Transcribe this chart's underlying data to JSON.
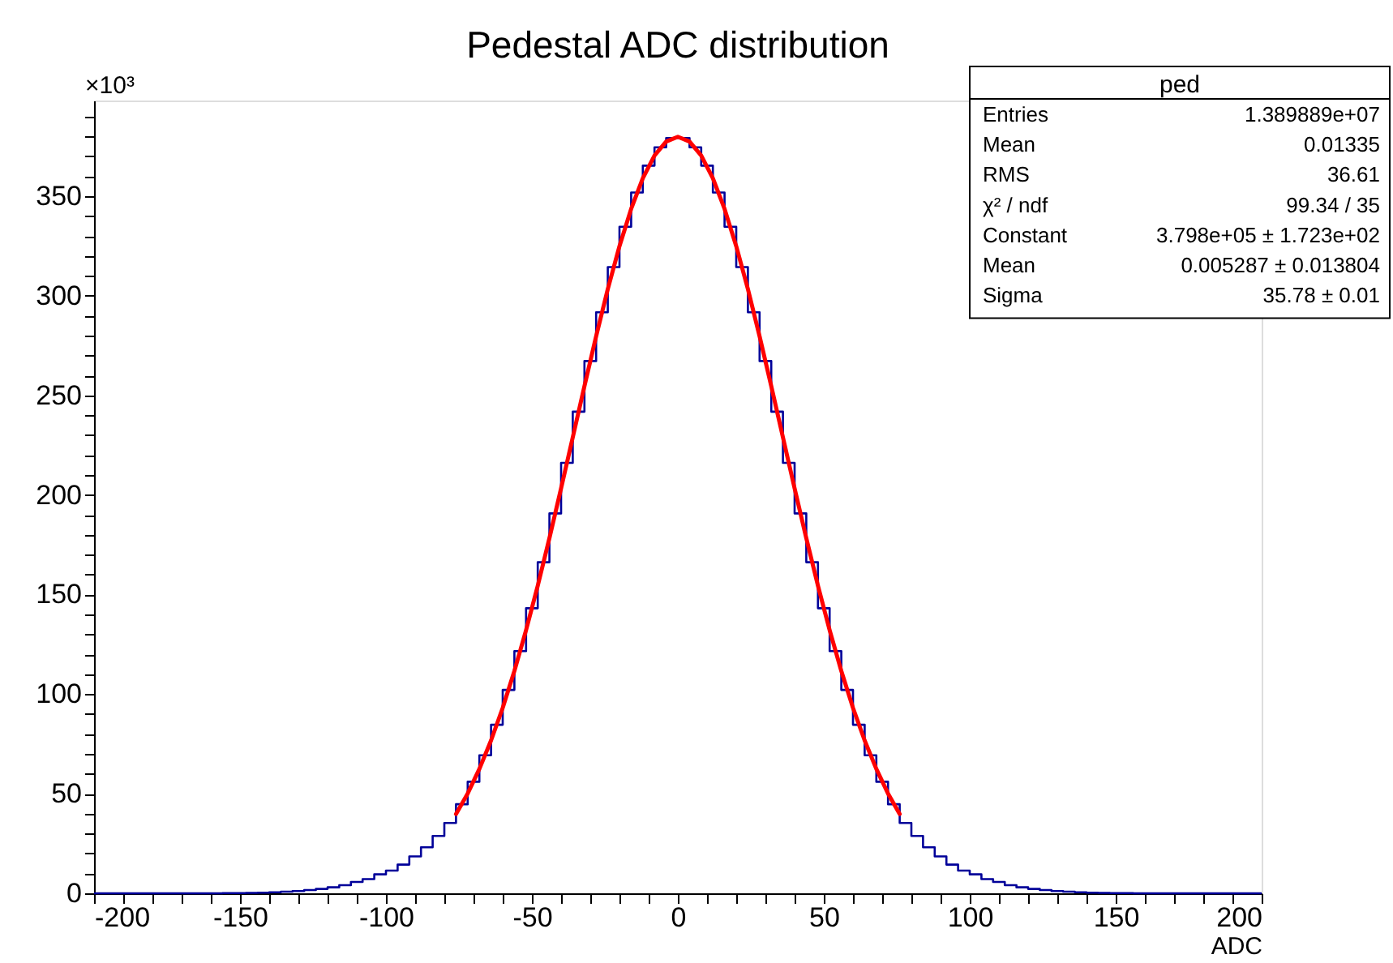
{
  "chart_data": {
    "type": "histogram",
    "title": "Pedestal ADC distribution",
    "xlabel": "ADC",
    "ylabel": "×10³",
    "xlim": [
      -200,
      200
    ],
    "ylim": [
      0,
      398
    ],
    "xticks": [
      -200,
      {
        "value": -190,
        "label": null
      },
      {
        "value": -180,
        "label": null
      },
      {
        "value": -170,
        "label": null
      },
      {
        "value": -160,
        "label": null
      },
      -150,
      {
        "value": -140,
        "label": null
      },
      {
        "value": -130,
        "label": null
      },
      {
        "value": -120,
        "label": null
      },
      {
        "value": -110,
        "label": null
      },
      -100,
      {
        "value": -90,
        "label": null
      },
      {
        "value": -80,
        "label": null
      },
      {
        "value": -70,
        "label": null
      },
      {
        "value": -60,
        "label": null
      },
      -50,
      {
        "value": -40,
        "label": null
      },
      {
        "value": -30,
        "label": null
      },
      {
        "value": -20,
        "label": null
      },
      {
        "value": -10,
        "label": null
      },
      0,
      {
        "value": 10,
        "label": null
      },
      {
        "value": 20,
        "label": null
      },
      {
        "value": 30,
        "label": null
      },
      {
        "value": 40,
        "label": null
      },
      50,
      {
        "value": 60,
        "label": null
      },
      {
        "value": 70,
        "label": null
      },
      {
        "value": 80,
        "label": null
      },
      {
        "value": 90,
        "label": null
      },
      100,
      {
        "value": 110,
        "label": null
      },
      {
        "value": 120,
        "label": null
      },
      {
        "value": 130,
        "label": null
      },
      {
        "value": 140,
        "label": null
      },
      150,
      {
        "value": 160,
        "label": null
      },
      {
        "value": 170,
        "label": null
      },
      {
        "value": 180,
        "label": null
      },
      {
        "value": 190,
        "label": null
      },
      200
    ],
    "yticks": [
      0,
      {
        "value": 10,
        "label": null
      },
      {
        "value": 20,
        "label": null
      },
      {
        "value": 30,
        "label": null
      },
      {
        "value": 40,
        "label": null
      },
      50,
      {
        "value": 60,
        "label": null
      },
      {
        "value": 70,
        "label": null
      },
      {
        "value": 80,
        "label": null
      },
      {
        "value": 90,
        "label": null
      },
      100,
      {
        "value": 110,
        "label": null
      },
      {
        "value": 120,
        "label": null
      },
      {
        "value": 130,
        "label": null
      },
      {
        "value": 140,
        "label": null
      },
      150,
      {
        "value": 160,
        "label": null
      },
      {
        "value": 170,
        "label": null
      },
      {
        "value": 180,
        "label": null
      },
      {
        "value": 190,
        "label": null
      },
      200,
      {
        "value": 210,
        "label": null
      },
      {
        "value": 220,
        "label": null
      },
      {
        "value": 230,
        "label": null
      },
      {
        "value": 240,
        "label": null
      },
      250,
      {
        "value": 260,
        "label": null
      },
      {
        "value": 270,
        "label": null
      },
      {
        "value": 280,
        "label": null
      },
      {
        "value": 290,
        "label": null
      },
      300,
      {
        "value": 310,
        "label": null
      },
      {
        "value": 320,
        "label": null
      },
      {
        "value": 330,
        "label": null
      },
      {
        "value": 340,
        "label": null
      },
      350,
      {
        "value": 360,
        "label": null
      },
      {
        "value": 370,
        "label": null
      },
      {
        "value": 380,
        "label": null
      },
      {
        "value": 390,
        "label": null
      }
    ],
    "series": [
      {
        "color": "#000099",
        "bins": [
          -200,
          -196,
          -192,
          -188,
          -184,
          -180,
          -176,
          -172,
          -168,
          -164,
          -160,
          -156,
          -152,
          -148,
          -144,
          -140,
          -136,
          -132,
          -128,
          -124,
          -120,
          -116,
          -112,
          -108,
          -104,
          -100,
          -96,
          -92,
          -88,
          -84,
          -80,
          -76,
          -72,
          -68,
          -64,
          -60,
          -56,
          -52,
          -48,
          -44,
          -40,
          -36,
          -32,
          -28,
          -24,
          -20,
          -16,
          -12,
          -8,
          -4,
          0,
          4,
          8,
          12,
          16,
          20,
          24,
          28,
          32,
          36,
          40,
          44,
          48,
          52,
          56,
          60,
          64,
          68,
          72,
          76,
          80,
          84,
          88,
          92,
          96,
          100,
          104,
          108,
          112,
          116,
          120,
          124,
          128,
          132,
          136,
          140,
          144,
          148,
          152,
          156,
          160,
          164,
          168,
          172,
          176,
          180,
          184,
          188,
          192,
          196,
          200
        ],
        "values": [
          0,
          0,
          0,
          0,
          0,
          0,
          0,
          0,
          0,
          0,
          0,
          0.1,
          0.1,
          0.2,
          0.3,
          0.5,
          0.8,
          1.1,
          1.6,
          2.2,
          3.0,
          4.1,
          5.7,
          7.1,
          9.5,
          11.4,
          14.4,
          18.5,
          23.1,
          28.8,
          35.3,
          44.7,
          56.0,
          69.3,
          84.6,
          102.1,
          121.6,
          143.1,
          166.2,
          190.7,
          216.1,
          241.8,
          267.2,
          291.7,
          314.4,
          334.6,
          351.8,
          365.3,
          374.5,
          379.2,
          379.2,
          374.5,
          365.3,
          351.8,
          334.6,
          314.4,
          291.7,
          267.2,
          241.8,
          216.1,
          190.7,
          166.2,
          143.1,
          121.6,
          102.1,
          84.6,
          69.3,
          56.0,
          44.7,
          35.3,
          28.8,
          23.1,
          18.5,
          14.4,
          11.4,
          9.5,
          7.1,
          5.7,
          4.1,
          3.0,
          2.2,
          1.6,
          1.1,
          0.8,
          0.5,
          0.3,
          0.2,
          0.1,
          0.1,
          0,
          0,
          0,
          0,
          0,
          0,
          0,
          0,
          0,
          0,
          0
        ]
      },
      {
        "type": "line",
        "color": "#ff0000",
        "x": [
          -76,
          -72,
          -68,
          -64,
          -60,
          -56,
          -52,
          -48,
          -44,
          -40,
          -36,
          -32,
          -28,
          -24,
          -20,
          -16,
          -12,
          -8,
          -4,
          0,
          4,
          8,
          12,
          16,
          20,
          24,
          28,
          32,
          36,
          40,
          44,
          48,
          52,
          56,
          60,
          64,
          68,
          72,
          76
        ],
        "values": [
          39.8,
          50.1,
          62.4,
          76.7,
          93.1,
          111.6,
          132.1,
          154.4,
          178.3,
          203.3,
          228.9,
          254.6,
          279.6,
          303.3,
          324.9,
          343.6,
          359.0,
          370.4,
          377.4,
          379.8,
          377.4,
          370.4,
          359.0,
          343.6,
          324.9,
          303.3,
          279.6,
          254.6,
          228.9,
          203.3,
          178.3,
          154.4,
          132.1,
          111.6,
          93.1,
          76.7,
          62.4,
          50.1,
          39.8
        ]
      }
    ],
    "annotations": [
      "ped",
      "Entries",
      "1.389889e+07",
      "Mean",
      "0.01335",
      "RMS",
      "36.61",
      "χ² / ndf",
      "99.34 / 35",
      "Constant",
      "3.798e+05 ± 1.723e+02",
      "Mean",
      "0.005287 ± 0.013804",
      "Sigma",
      "35.78 ± 0.01"
    ]
  }
}
